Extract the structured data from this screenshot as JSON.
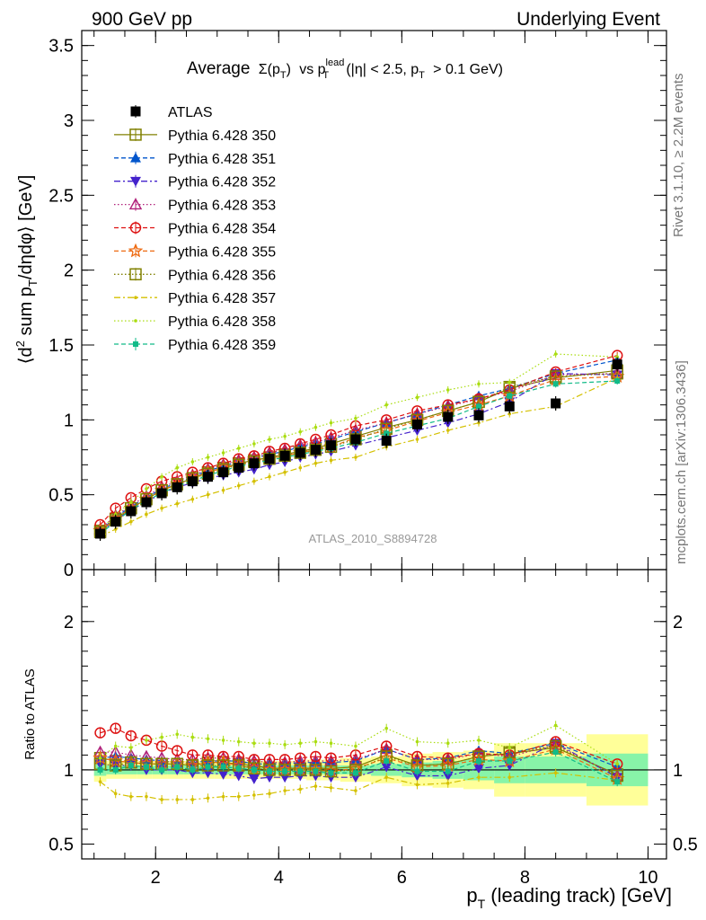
{
  "header": {
    "left": "900 GeV pp",
    "right": "Underlying Event"
  },
  "side": {
    "rivet": "Rivet 3.1.10, ≥ 2.2M events",
    "source": "mcplots.cern.ch [arXiv:1306.3436]"
  },
  "panel_title": {
    "prefix": "Average",
    "sigma": "Σ(p",
    "sub_T": "T",
    "close": ")",
    "vs": "vs p",
    "lead_sup": "lead",
    "rest": "(|η| < 2.5, p",
    "tail": "> 0.1 GeV)"
  },
  "watermark": "ATLAS_2010_S8894728",
  "chart_data": [
    {
      "type": "scatter",
      "panel": "main",
      "ylabel": "⟨d² sum p_T/dηdφ⟩ [GeV]",
      "xlim": [
        0.8,
        10.3
      ],
      "ylim": [
        0,
        3.6
      ],
      "y_ticks": [
        "0",
        "0.5",
        "1",
        "1.5",
        "2",
        "2.5",
        "3",
        "3.5"
      ],
      "x": [
        1.1,
        1.35,
        1.6,
        1.85,
        2.1,
        2.35,
        2.6,
        2.85,
        3.1,
        3.35,
        3.6,
        3.85,
        4.1,
        4.35,
        4.6,
        4.85,
        5.25,
        5.75,
        6.25,
        6.75,
        7.25,
        7.75,
        8.5,
        9.5
      ],
      "series": [
        {
          "name": "ATLAS",
          "color": "#000000",
          "marker": "square-filled",
          "dash": "none",
          "values": [
            0.24,
            0.32,
            0.39,
            0.45,
            0.51,
            0.55,
            0.59,
            0.62,
            0.65,
            0.68,
            0.71,
            0.74,
            0.76,
            0.78,
            0.8,
            0.83,
            0.87,
            0.86,
            0.97,
            1.02,
            1.03,
            1.09,
            1.11,
            1.37
          ]
        },
        {
          "name": "Pythia 6.428 350",
          "color": "#808000",
          "marker": "square-open",
          "dash": "solid",
          "values": [
            0.26,
            0.34,
            0.41,
            0.47,
            0.53,
            0.57,
            0.61,
            0.65,
            0.68,
            0.71,
            0.73,
            0.75,
            0.77,
            0.79,
            0.81,
            0.84,
            0.89,
            0.95,
            1.0,
            1.06,
            1.12,
            1.21,
            1.28,
            1.33
          ]
        },
        {
          "name": "Pythia 6.428 351",
          "color": "#0055cc",
          "marker": "triangle-up-filled",
          "dash": "dashed",
          "values": [
            0.26,
            0.35,
            0.42,
            0.48,
            0.54,
            0.58,
            0.62,
            0.66,
            0.69,
            0.72,
            0.74,
            0.77,
            0.79,
            0.82,
            0.84,
            0.87,
            0.92,
            0.98,
            1.04,
            1.1,
            1.16,
            1.21,
            1.31,
            1.4
          ]
        },
        {
          "name": "Pythia 6.428 352",
          "color": "#4422cc",
          "marker": "triangle-down-filled",
          "dash": "dashdot",
          "values": [
            0.25,
            0.33,
            0.4,
            0.45,
            0.51,
            0.55,
            0.58,
            0.61,
            0.63,
            0.65,
            0.67,
            0.7,
            0.72,
            0.75,
            0.77,
            0.79,
            0.83,
            0.88,
            0.93,
            0.98,
            1.04,
            1.12,
            1.31,
            1.3
          ]
        },
        {
          "name": "Pythia 6.428 353",
          "color": "#b0207a",
          "marker": "triangle-up-open",
          "dash": "dotted",
          "values": [
            0.27,
            0.36,
            0.43,
            0.49,
            0.55,
            0.59,
            0.63,
            0.67,
            0.7,
            0.73,
            0.75,
            0.78,
            0.8,
            0.83,
            0.85,
            0.88,
            0.93,
            0.98,
            1.04,
            1.09,
            1.14,
            1.19,
            1.3,
            1.31
          ]
        },
        {
          "name": "Pythia 6.428 354",
          "color": "#dd1111",
          "marker": "circle-open",
          "dash": "dashed",
          "values": [
            0.3,
            0.41,
            0.48,
            0.54,
            0.59,
            0.62,
            0.65,
            0.68,
            0.71,
            0.74,
            0.76,
            0.79,
            0.81,
            0.84,
            0.87,
            0.9,
            0.96,
            1.0,
            1.06,
            1.1,
            1.14,
            1.2,
            1.32,
            1.43
          ]
        },
        {
          "name": "Pythia 6.428 355",
          "color": "#ee6a11",
          "marker": "star-open",
          "dash": "dashed",
          "values": [
            0.26,
            0.34,
            0.41,
            0.47,
            0.53,
            0.57,
            0.61,
            0.65,
            0.68,
            0.7,
            0.72,
            0.74,
            0.76,
            0.78,
            0.8,
            0.82,
            0.88,
            0.93,
            0.99,
            1.05,
            1.1,
            1.16,
            1.27,
            1.29
          ]
        },
        {
          "name": "Pythia 6.428 356",
          "color": "#808000",
          "marker": "square-open",
          "dash": "dotted",
          "values": [
            0.25,
            0.33,
            0.41,
            0.47,
            0.53,
            0.57,
            0.61,
            0.64,
            0.67,
            0.7,
            0.72,
            0.74,
            0.76,
            0.78,
            0.8,
            0.82,
            0.87,
            0.94,
            1.0,
            1.06,
            1.12,
            1.22,
            1.29,
            1.31
          ]
        },
        {
          "name": "Pythia 6.428 357",
          "color": "#d4c000",
          "marker": "dot",
          "dash": "dashdot",
          "values": [
            0.22,
            0.27,
            0.32,
            0.37,
            0.41,
            0.44,
            0.47,
            0.5,
            0.53,
            0.56,
            0.59,
            0.62,
            0.65,
            0.68,
            0.71,
            0.73,
            0.75,
            0.82,
            0.87,
            0.93,
            0.98,
            1.04,
            1.09,
            1.28
          ]
        },
        {
          "name": "Pythia 6.428 358",
          "color": "#aadd11",
          "marker": "dot",
          "dash": "dotted",
          "values": [
            0.26,
            0.37,
            0.45,
            0.54,
            0.62,
            0.68,
            0.72,
            0.75,
            0.78,
            0.81,
            0.84,
            0.87,
            0.89,
            0.92,
            0.95,
            0.98,
            1.01,
            1.1,
            1.15,
            1.2,
            1.24,
            1.25,
            1.44,
            1.42
          ]
        },
        {
          "name": "Pythia 6.428 359",
          "color": "#11bb88",
          "marker": "square-small-filled",
          "dash": "dashed",
          "values": [
            0.24,
            0.32,
            0.4,
            0.46,
            0.51,
            0.56,
            0.59,
            0.63,
            0.66,
            0.69,
            0.71,
            0.73,
            0.75,
            0.77,
            0.79,
            0.81,
            0.85,
            0.91,
            0.96,
            1.01,
            1.09,
            1.16,
            1.24,
            1.26
          ]
        }
      ]
    },
    {
      "type": "scatter",
      "panel": "ratio",
      "ylabel": "Ratio to ATLAS",
      "xlabel": "p_T (leading track) [GeV]",
      "xlim": [
        0.8,
        10.3
      ],
      "ylim": [
        0.4,
        2.35
      ],
      "y_ticks": [
        "0.5",
        "1",
        "2"
      ],
      "x_ticks": [
        "2",
        "4",
        "6",
        "8",
        "10"
      ],
      "uncertainty_bands": {
        "x_edges": [
          1.0,
          1.2,
          1.45,
          1.7,
          1.95,
          2.2,
          2.45,
          2.7,
          2.95,
          3.2,
          3.45,
          3.7,
          3.95,
          4.2,
          4.45,
          4.7,
          5.0,
          5.5,
          6.0,
          6.5,
          7.0,
          7.5,
          8.0,
          9.0,
          10.0
        ],
        "stat_halfwidth": [
          0.04,
          0.03,
          0.03,
          0.03,
          0.03,
          0.03,
          0.03,
          0.03,
          0.03,
          0.03,
          0.03,
          0.03,
          0.03,
          0.03,
          0.03,
          0.03,
          0.03,
          0.04,
          0.05,
          0.06,
          0.07,
          0.09,
          0.09,
          0.11
        ],
        "total_halfwidth": [
          0.08,
          0.06,
          0.06,
          0.06,
          0.06,
          0.06,
          0.06,
          0.06,
          0.06,
          0.06,
          0.06,
          0.06,
          0.06,
          0.06,
          0.07,
          0.07,
          0.08,
          0.09,
          0.11,
          0.12,
          0.13,
          0.18,
          0.18,
          0.24
        ]
      },
      "ratios": {
        "Pythia 6.428 350": [
          1.08,
          1.06,
          1.05,
          1.04,
          1.04,
          1.04,
          1.03,
          1.05,
          1.05,
          1.04,
          1.03,
          1.01,
          1.01,
          1.01,
          1.01,
          1.01,
          1.02,
          1.1,
          1.03,
          1.04,
          1.09,
          1.11,
          1.15,
          0.97
        ]
      },
      "ratio_series": [
        {
          "name": "Pythia 6.428 350",
          "values": [
            1.08,
            1.06,
            1.05,
            1.04,
            1.04,
            1.04,
            1.03,
            1.05,
            1.05,
            1.04,
            1.03,
            1.01,
            1.01,
            1.01,
            1.01,
            1.01,
            1.02,
            1.1,
            1.03,
            1.04,
            1.09,
            1.11,
            1.15,
            0.97
          ]
        },
        {
          "name": "Pythia 6.428 351",
          "values": [
            1.08,
            1.09,
            1.08,
            1.07,
            1.06,
            1.05,
            1.05,
            1.06,
            1.06,
            1.06,
            1.04,
            1.04,
            1.04,
            1.05,
            1.05,
            1.05,
            1.06,
            1.14,
            1.07,
            1.08,
            1.13,
            1.11,
            1.18,
            1.02
          ]
        },
        {
          "name": "Pythia 6.428 352",
          "values": [
            1.04,
            1.03,
            1.03,
            1.0,
            1.0,
            1.0,
            0.98,
            0.98,
            0.97,
            0.96,
            0.94,
            0.95,
            0.95,
            0.96,
            0.96,
            0.95,
            0.95,
            1.02,
            0.96,
            0.96,
            1.01,
            1.03,
            1.18,
            0.95
          ]
        },
        {
          "name": "Pythia 6.428 353",
          "values": [
            1.12,
            1.12,
            1.1,
            1.09,
            1.08,
            1.07,
            1.07,
            1.08,
            1.08,
            1.07,
            1.06,
            1.05,
            1.05,
            1.06,
            1.06,
            1.06,
            1.07,
            1.14,
            1.07,
            1.07,
            1.11,
            1.09,
            1.17,
            0.96
          ]
        },
        {
          "name": "Pythia 6.428 354",
          "values": [
            1.25,
            1.28,
            1.23,
            1.2,
            1.16,
            1.13,
            1.1,
            1.1,
            1.09,
            1.09,
            1.07,
            1.07,
            1.07,
            1.08,
            1.09,
            1.08,
            1.1,
            1.16,
            1.09,
            1.08,
            1.11,
            1.1,
            1.19,
            1.04
          ]
        },
        {
          "name": "Pythia 6.428 355",
          "values": [
            1.08,
            1.06,
            1.05,
            1.04,
            1.04,
            1.04,
            1.03,
            1.05,
            1.05,
            1.03,
            1.01,
            1.0,
            1.0,
            1.0,
            1.0,
            0.99,
            1.01,
            1.08,
            1.02,
            1.03,
            1.07,
            1.06,
            1.14,
            0.94
          ]
        },
        {
          "name": "Pythia 6.428 356",
          "values": [
            1.04,
            1.03,
            1.05,
            1.04,
            1.04,
            1.04,
            1.03,
            1.03,
            1.03,
            1.03,
            1.01,
            1.0,
            1.0,
            1.0,
            1.0,
            0.99,
            1.0,
            1.09,
            1.03,
            1.04,
            1.09,
            1.12,
            1.16,
            0.96
          ]
        },
        {
          "name": "Pythia 6.428 357",
          "values": [
            0.92,
            0.84,
            0.82,
            0.82,
            0.8,
            0.8,
            0.8,
            0.81,
            0.82,
            0.82,
            0.83,
            0.84,
            0.86,
            0.87,
            0.89,
            0.88,
            0.86,
            0.95,
            0.9,
            0.91,
            0.95,
            0.95,
            0.98,
            0.93
          ]
        },
        {
          "name": "Pythia 6.428 358",
          "values": [
            1.08,
            1.16,
            1.15,
            1.2,
            1.22,
            1.24,
            1.22,
            1.21,
            1.2,
            1.19,
            1.18,
            1.18,
            1.17,
            1.18,
            1.19,
            1.18,
            1.16,
            1.28,
            1.19,
            1.18,
            1.2,
            1.15,
            1.3,
            1.04
          ]
        },
        {
          "name": "Pythia 6.428 359",
          "values": [
            1.0,
            1.0,
            1.03,
            1.02,
            1.0,
            1.02,
            1.0,
            1.02,
            1.02,
            1.01,
            1.0,
            0.99,
            0.99,
            0.99,
            0.99,
            0.98,
            0.98,
            1.06,
            0.99,
            0.99,
            1.06,
            1.06,
            1.12,
            0.92
          ]
        }
      ]
    }
  ],
  "axes": {
    "main_ylabel_parts": [
      "⟨d",
      "2",
      " sum p",
      "T",
      "/dηdφ⟩ [GeV]"
    ],
    "xlabel_parts": [
      "p",
      "T",
      " (leading track) [GeV]"
    ],
    "ratio_ylabel": "Ratio to ATLAS"
  }
}
